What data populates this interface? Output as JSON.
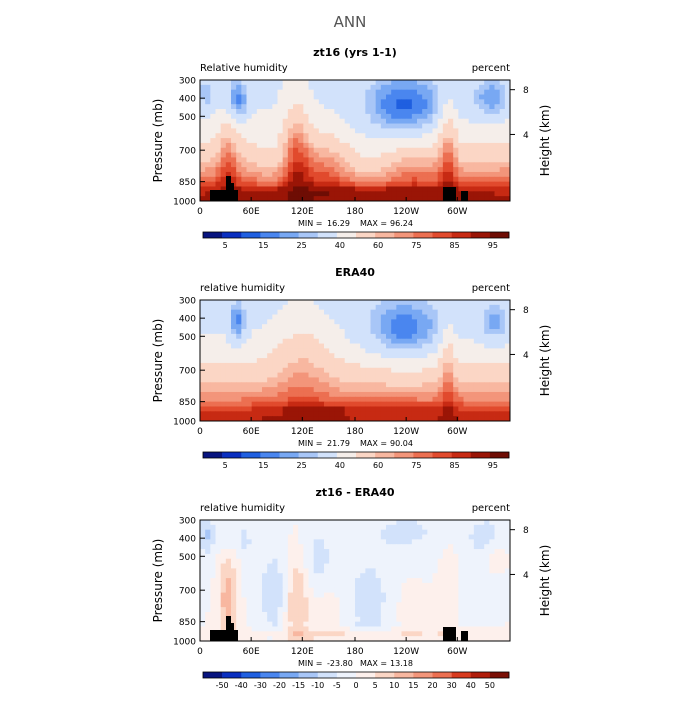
{
  "page": {
    "title": "ANN"
  },
  "colors": {
    "abs_palette": [
      "#08147f",
      "#0a2fc0",
      "#1f5fe0",
      "#4a86ef",
      "#78a8f3",
      "#a8c6f7",
      "#d2e2fb",
      "#f5eeea",
      "#fbd6c5",
      "#f8b7a0",
      "#f3957a",
      "#ec6f51",
      "#e14a2d",
      "#c72a13",
      "#9a1506",
      "#6e0d04"
    ],
    "diff_palette": [
      "#08147f",
      "#0a2fc0",
      "#1f5fe0",
      "#4a86ef",
      "#78a8f3",
      "#a8c6f7",
      "#d2e2fb",
      "#eef3fc",
      "#fdf0ec",
      "#fbd6c5",
      "#f8b7a0",
      "#f3957a",
      "#ec6f51",
      "#d83b1f",
      "#b01d0b",
      "#7a0f05"
    ],
    "topography": "#000000"
  },
  "chart_data": [
    {
      "type": "heatmap",
      "title": "zt16 (yrs 1-1)",
      "left_label": "Relative humidity",
      "right_label": "percent",
      "ylabel": "Pressure (mb)",
      "y2label": "Height (km)",
      "x_ticks": [
        "0",
        "60E",
        "120E",
        "180",
        "120W",
        "60W"
      ],
      "y_ticks": [
        "300",
        "400",
        "500",
        "700",
        "850",
        "1000"
      ],
      "y2_ticks": [
        "8",
        "4"
      ],
      "stats": {
        "min_label": "MIN =",
        "min": "16.29",
        "max_label": "MAX =",
        "max": "96.24"
      },
      "colorbar_labels": [
        "5",
        "15",
        "25",
        "40",
        "60",
        "75",
        "85",
        "95"
      ],
      "topography": true
    },
    {
      "type": "heatmap",
      "title": "ERA40",
      "left_label": "relative humidity",
      "right_label": "percent",
      "ylabel": "Pressure (mb)",
      "y2label": "Height (km)",
      "x_ticks": [
        "0",
        "60E",
        "120E",
        "180",
        "120W",
        "60W"
      ],
      "y_ticks": [
        "300",
        "400",
        "500",
        "700",
        "850",
        "1000"
      ],
      "y2_ticks": [
        "8",
        "4"
      ],
      "stats": {
        "min_label": "MIN =",
        "min": "21.79",
        "max_label": "MAX =",
        "max": "90.04"
      },
      "colorbar_labels": [
        "5",
        "15",
        "25",
        "40",
        "60",
        "75",
        "85",
        "95"
      ],
      "topography": false
    },
    {
      "type": "heatmap",
      "title": "zt16 - ERA40",
      "left_label": "relative humidity",
      "right_label": "percent",
      "ylabel": "Pressure (mb)",
      "y2label": "Height (km)",
      "x_ticks": [
        "0",
        "60E",
        "120E",
        "180",
        "120W",
        "60W"
      ],
      "y_ticks": [
        "300",
        "400",
        "500",
        "700",
        "850",
        "1000"
      ],
      "y2_ticks": [
        "8",
        "4"
      ],
      "stats": {
        "min_label": "MIN =",
        "min": "-23.80",
        "max_label": "MAX =",
        "max": "13.18"
      },
      "colorbar_labels": [
        "-50",
        "-40",
        "-30",
        "-20",
        "-15",
        "-10",
        "-5",
        "0",
        "5",
        "10",
        "15",
        "20",
        "30",
        "40",
        "50"
      ],
      "topography": true
    }
  ]
}
